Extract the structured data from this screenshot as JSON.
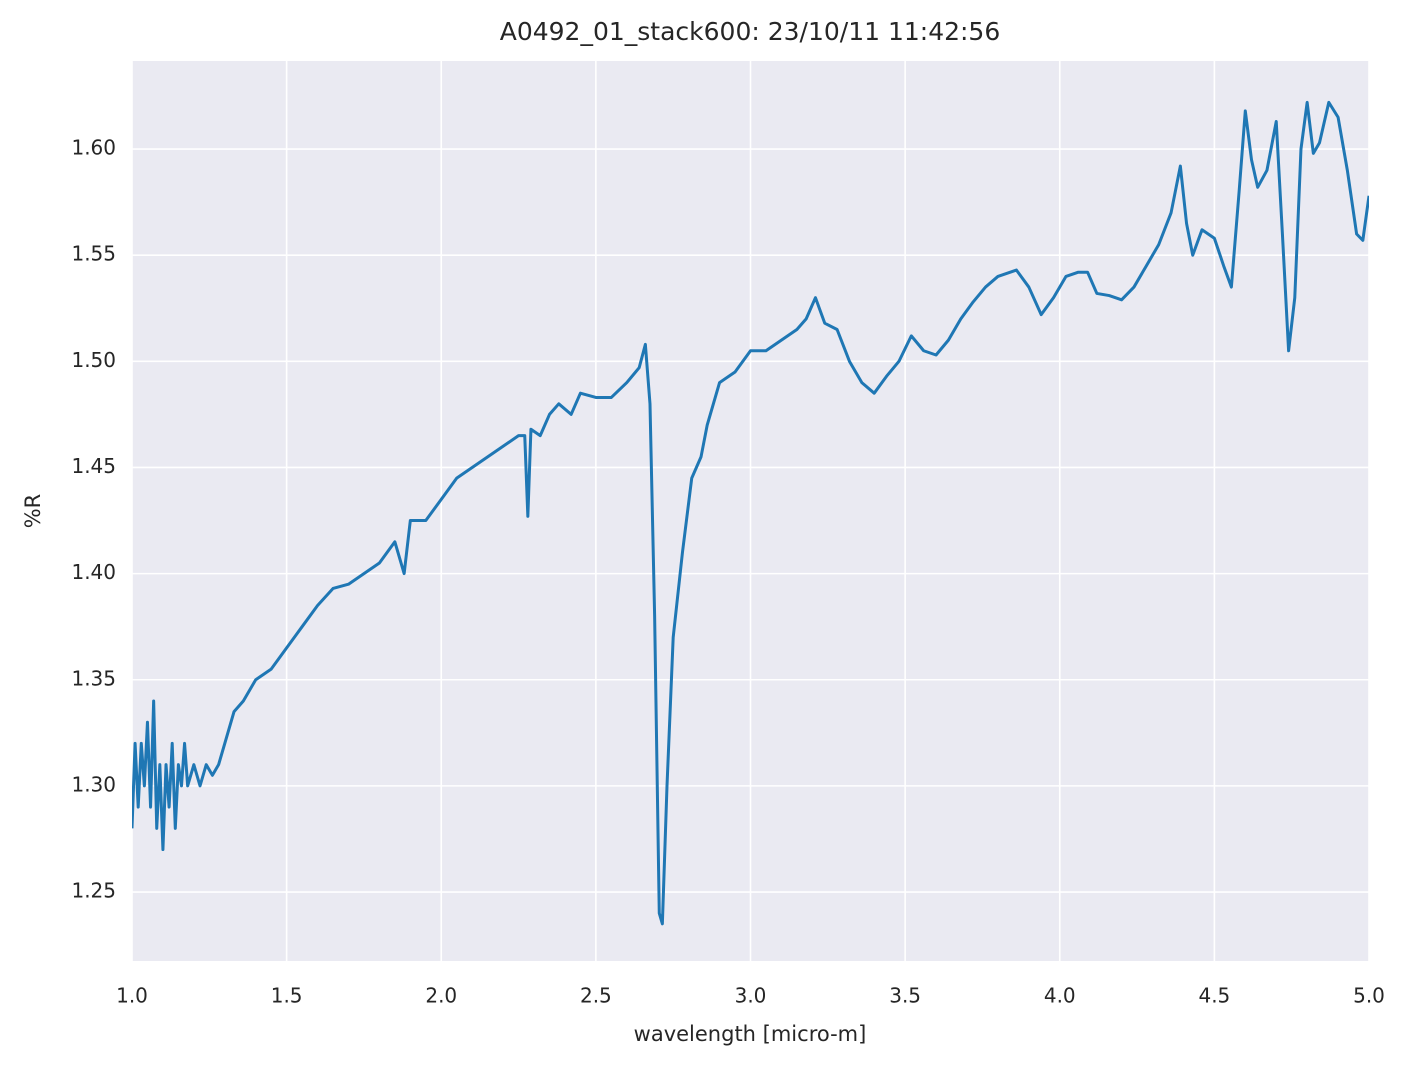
{
  "chart_data": {
    "type": "line",
    "title": "A0492_01_stack600:  23/10/11 11:42:56",
    "xlabel": "wavelength [micro-m]",
    "ylabel": "%R",
    "background": "#eaeaf2",
    "grid": true,
    "xlim": [
      1.0,
      5.0
    ],
    "ylim": [
      1.2175,
      1.6415
    ],
    "xticks": [
      {
        "value": 1.0,
        "label": "1.0"
      },
      {
        "value": 1.5,
        "label": "1.5"
      },
      {
        "value": 2.0,
        "label": "2.0"
      },
      {
        "value": 2.5,
        "label": "2.5"
      },
      {
        "value": 3.0,
        "label": "3.0"
      },
      {
        "value": 3.5,
        "label": "3.5"
      },
      {
        "value": 4.0,
        "label": "4.0"
      },
      {
        "value": 4.5,
        "label": "4.5"
      },
      {
        "value": 5.0,
        "label": "5.0"
      }
    ],
    "yticks": [
      {
        "value": 1.25,
        "label": "1.25"
      },
      {
        "value": 1.3,
        "label": "1.30"
      },
      {
        "value": 1.35,
        "label": "1.35"
      },
      {
        "value": 1.4,
        "label": "1.40"
      },
      {
        "value": 1.45,
        "label": "1.45"
      },
      {
        "value": 1.5,
        "label": "1.50"
      },
      {
        "value": 1.55,
        "label": "1.55"
      },
      {
        "value": 1.6,
        "label": "1.60"
      }
    ],
    "x": [
      1.0,
      1.01,
      1.02,
      1.03,
      1.04,
      1.05,
      1.06,
      1.07,
      1.08,
      1.09,
      1.1,
      1.11,
      1.12,
      1.13,
      1.14,
      1.15,
      1.16,
      1.17,
      1.18,
      1.2,
      1.22,
      1.24,
      1.26,
      1.28,
      1.3,
      1.33,
      1.36,
      1.4,
      1.45,
      1.5,
      1.55,
      1.6,
      1.65,
      1.7,
      1.75,
      1.8,
      1.85,
      1.88,
      1.9,
      1.95,
      2.0,
      2.05,
      2.1,
      2.15,
      2.2,
      2.25,
      2.27,
      2.28,
      2.29,
      2.32,
      2.35,
      2.38,
      2.42,
      2.45,
      2.5,
      2.55,
      2.6,
      2.64,
      2.66,
      2.675,
      2.69,
      2.705,
      2.715,
      2.73,
      2.75,
      2.78,
      2.81,
      2.84,
      2.86,
      2.9,
      2.95,
      3.0,
      3.05,
      3.1,
      3.15,
      3.18,
      3.21,
      3.24,
      3.28,
      3.32,
      3.36,
      3.4,
      3.44,
      3.48,
      3.52,
      3.56,
      3.6,
      3.64,
      3.68,
      3.72,
      3.76,
      3.8,
      3.86,
      3.9,
      3.94,
      3.98,
      4.02,
      4.06,
      4.09,
      4.12,
      4.16,
      4.2,
      4.24,
      4.28,
      4.32,
      4.36,
      4.39,
      4.41,
      4.43,
      4.46,
      4.5,
      4.53,
      4.555,
      4.58,
      4.6,
      4.62,
      4.64,
      4.67,
      4.7,
      4.72,
      4.74,
      4.76,
      4.78,
      4.8,
      4.82,
      4.84,
      4.87,
      4.9,
      4.93,
      4.96,
      4.98,
      5.0
    ],
    "series": [
      {
        "color": "#1f77b4",
        "values": [
          1.28,
          1.32,
          1.29,
          1.32,
          1.3,
          1.33,
          1.29,
          1.34,
          1.28,
          1.31,
          1.27,
          1.31,
          1.29,
          1.32,
          1.28,
          1.31,
          1.3,
          1.32,
          1.3,
          1.31,
          1.3,
          1.31,
          1.305,
          1.31,
          1.32,
          1.335,
          1.34,
          1.35,
          1.355,
          1.365,
          1.375,
          1.385,
          1.393,
          1.395,
          1.4,
          1.405,
          1.415,
          1.4,
          1.425,
          1.425,
          1.435,
          1.445,
          1.45,
          1.455,
          1.46,
          1.465,
          1.465,
          1.427,
          1.468,
          1.465,
          1.475,
          1.48,
          1.475,
          1.485,
          1.483,
          1.483,
          1.49,
          1.497,
          1.508,
          1.48,
          1.38,
          1.24,
          1.235,
          1.3,
          1.37,
          1.41,
          1.445,
          1.455,
          1.47,
          1.49,
          1.495,
          1.505,
          1.505,
          1.51,
          1.515,
          1.52,
          1.53,
          1.518,
          1.515,
          1.5,
          1.49,
          1.485,
          1.493,
          1.5,
          1.512,
          1.505,
          1.503,
          1.51,
          1.52,
          1.528,
          1.535,
          1.54,
          1.543,
          1.535,
          1.522,
          1.53,
          1.54,
          1.542,
          1.542,
          1.532,
          1.531,
          1.529,
          1.535,
          1.545,
          1.555,
          1.57,
          1.592,
          1.565,
          1.55,
          1.562,
          1.558,
          1.545,
          1.535,
          1.58,
          1.618,
          1.595,
          1.582,
          1.59,
          1.613,
          1.56,
          1.505,
          1.53,
          1.6,
          1.622,
          1.598,
          1.603,
          1.622,
          1.615,
          1.59,
          1.56,
          1.557,
          1.578
        ]
      }
    ]
  }
}
